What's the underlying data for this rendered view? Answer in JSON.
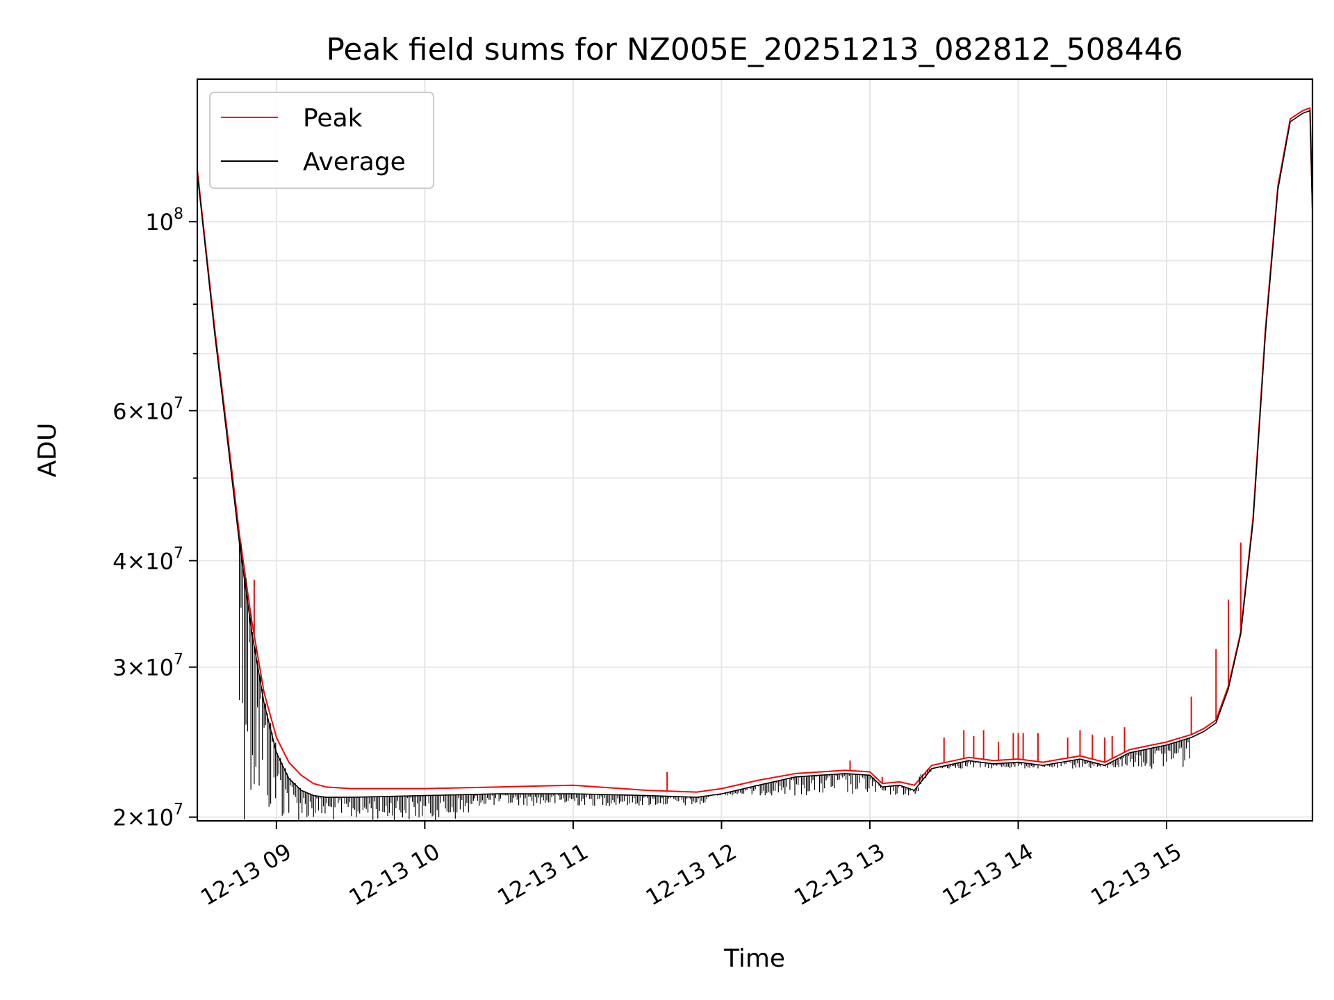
{
  "chart_data": {
    "type": "line",
    "title": "Peak field sums for NZ005E_20251213_082812_508446",
    "xlabel": "Time",
    "ylabel": "ADU",
    "yscale": "log",
    "xlim": [
      "2025-12-13 08:28",
      "2025-12-13 15:59"
    ],
    "ylim": [
      19800000,
      147000000
    ],
    "grid": true,
    "legend_position": "top-left",
    "x_ticks": [
      {
        "value": "2025-12-13 09:00",
        "label": "12-13 09"
      },
      {
        "value": "2025-12-13 10:00",
        "label": "12-13 10"
      },
      {
        "value": "2025-12-13 11:00",
        "label": "12-13 11"
      },
      {
        "value": "2025-12-13 12:00",
        "label": "12-13 12"
      },
      {
        "value": "2025-12-13 13:00",
        "label": "12-13 13"
      },
      {
        "value": "2025-12-13 14:00",
        "label": "12-13 14"
      },
      {
        "value": "2025-12-13 15:00",
        "label": "12-13 15"
      }
    ],
    "y_ticks": [
      {
        "value": 20000000,
        "mant": "2",
        "exp": "7"
      },
      {
        "value": 30000000,
        "mant": "3",
        "exp": "7"
      },
      {
        "value": 40000000,
        "mant": "4",
        "exp": "7"
      },
      {
        "value": 60000000,
        "mant": "6",
        "exp": "7"
      },
      {
        "value": 100000000,
        "mant": "",
        "exp": "8"
      }
    ],
    "y_minor_ticks": [
      50000000,
      70000000,
      80000000,
      90000000
    ],
    "series": [
      {
        "name": "Peak",
        "color": "#ff0000",
        "x": [
          "2025-12-13 08:28",
          "2025-12-13 08:35",
          "2025-12-13 08:40",
          "2025-12-13 08:45",
          "2025-12-13 08:50",
          "2025-12-13 08:55",
          "2025-12-13 09:00",
          "2025-12-13 09:05",
          "2025-12-13 09:10",
          "2025-12-13 09:15",
          "2025-12-13 09:20",
          "2025-12-13 09:30",
          "2025-12-13 10:00",
          "2025-12-13 10:30",
          "2025-12-13 11:00",
          "2025-12-13 11:30",
          "2025-12-13 11:50",
          "2025-12-13 12:00",
          "2025-12-13 12:15",
          "2025-12-13 12:30",
          "2025-12-13 12:50",
          "2025-12-13 13:00",
          "2025-12-13 13:05",
          "2025-12-13 13:12",
          "2025-12-13 13:18",
          "2025-12-13 13:25",
          "2025-12-13 13:40",
          "2025-12-13 13:50",
          "2025-12-13 14:00",
          "2025-12-13 14:10",
          "2025-12-13 14:25",
          "2025-12-13 14:35",
          "2025-12-13 14:45",
          "2025-12-13 15:00",
          "2025-12-13 15:10",
          "2025-12-13 15:15",
          "2025-12-13 15:20",
          "2025-12-13 15:25",
          "2025-12-13 15:30",
          "2025-12-13 15:35",
          "2025-12-13 15:40",
          "2025-12-13 15:45",
          "2025-12-13 15:50",
          "2025-12-13 15:55",
          "2025-12-13 15:58",
          "2025-12-13 15:59"
        ],
        "values": [
          115000000,
          75000000,
          57000000,
          43000000,
          34000000,
          28000000,
          24800000,
          23200000,
          22400000,
          21900000,
          21700000,
          21600000,
          21600000,
          21700000,
          21800000,
          21500000,
          21400000,
          21600000,
          22100000,
          22500000,
          22700000,
          22600000,
          21900000,
          22000000,
          21800000,
          23000000,
          23500000,
          23300000,
          23400000,
          23200000,
          23600000,
          23200000,
          24000000,
          24500000,
          25000000,
          25400000,
          26000000,
          28500000,
          33000000,
          45000000,
          75000000,
          110000000,
          132000000,
          135000000,
          136000000,
          103000000
        ],
        "spikes": [
          {
            "x": "2025-12-13 08:51",
            "value": 38000000
          },
          {
            "x": "2025-12-13 11:38",
            "value": 22600000
          },
          {
            "x": "2025-12-13 12:52",
            "value": 23300000
          },
          {
            "x": "2025-12-13 13:05",
            "value": 22300000
          },
          {
            "x": "2025-12-13 13:30",
            "value": 24800000
          },
          {
            "x": "2025-12-13 13:38",
            "value": 25300000
          },
          {
            "x": "2025-12-13 13:42",
            "value": 24900000
          },
          {
            "x": "2025-12-13 13:46",
            "value": 25300000
          },
          {
            "x": "2025-12-13 13:52",
            "value": 24500000
          },
          {
            "x": "2025-12-13 13:58",
            "value": 25100000
          },
          {
            "x": "2025-12-13 14:00",
            "value": 25100000
          },
          {
            "x": "2025-12-13 14:02",
            "value": 25100000
          },
          {
            "x": "2025-12-13 14:08",
            "value": 25100000
          },
          {
            "x": "2025-12-13 14:20",
            "value": 24800000
          },
          {
            "x": "2025-12-13 14:25",
            "value": 25300000
          },
          {
            "x": "2025-12-13 14:30",
            "value": 25000000
          },
          {
            "x": "2025-12-13 14:35",
            "value": 24800000
          },
          {
            "x": "2025-12-13 14:38",
            "value": 24900000
          },
          {
            "x": "2025-12-13 14:43",
            "value": 25500000
          },
          {
            "x": "2025-12-13 15:10",
            "value": 27700000
          },
          {
            "x": "2025-12-13 15:20",
            "value": 31500000
          },
          {
            "x": "2025-12-13 15:25",
            "value": 36000000
          },
          {
            "x": "2025-12-13 15:30",
            "value": 42000000
          }
        ]
      },
      {
        "name": "Average",
        "color": "#000000",
        "x": [
          "2025-12-13 08:28",
          "2025-12-13 08:35",
          "2025-12-13 08:40",
          "2025-12-13 08:45",
          "2025-12-13 08:50",
          "2025-12-13 08:55",
          "2025-12-13 09:00",
          "2025-12-13 09:05",
          "2025-12-13 09:10",
          "2025-12-13 09:15",
          "2025-12-13 09:20",
          "2025-12-13 09:30",
          "2025-12-13 10:00",
          "2025-12-13 10:30",
          "2025-12-13 11:00",
          "2025-12-13 11:30",
          "2025-12-13 11:50",
          "2025-12-13 12:00",
          "2025-12-13 12:15",
          "2025-12-13 12:30",
          "2025-12-13 12:50",
          "2025-12-13 13:00",
          "2025-12-13 13:05",
          "2025-12-13 13:12",
          "2025-12-13 13:18",
          "2025-12-13 13:25",
          "2025-12-13 13:40",
          "2025-12-13 13:50",
          "2025-12-13 14:00",
          "2025-12-13 14:10",
          "2025-12-13 14:25",
          "2025-12-13 14:35",
          "2025-12-13 14:45",
          "2025-12-13 15:00",
          "2025-12-13 15:10",
          "2025-12-13 15:15",
          "2025-12-13 15:20",
          "2025-12-13 15:25",
          "2025-12-13 15:30",
          "2025-12-13 15:35",
          "2025-12-13 15:40",
          "2025-12-13 15:45",
          "2025-12-13 15:50",
          "2025-12-13 15:55",
          "2025-12-13 15:58",
          "2025-12-13 15:59"
        ],
        "values": [
          114000000,
          74000000,
          56000000,
          42000000,
          33000000,
          27200000,
          23800000,
          22200000,
          21500000,
          21200000,
          21100000,
          21100000,
          21200000,
          21300000,
          21300000,
          21200000,
          21100000,
          21300000,
          21800000,
          22300000,
          22500000,
          22400000,
          21700000,
          21800000,
          21500000,
          22800000,
          23300000,
          23100000,
          23200000,
          23000000,
          23400000,
          23000000,
          23800000,
          24300000,
          24800000,
          25200000,
          25800000,
          28300000,
          32800000,
          44500000,
          74000000,
          109000000,
          131000000,
          134000000,
          135000000,
          102000000
        ],
        "noise": [
          {
            "from": "2025-12-13 08:45",
            "to": "2025-12-13 10:20",
            "min": 19800000
          },
          {
            "from": "2025-12-13 10:20",
            "to": "2025-12-13 11:55",
            "min": 20600000
          },
          {
            "from": "2025-12-13 11:55",
            "to": "2025-12-13 13:20",
            "min": 21200000
          },
          {
            "from": "2025-12-13 13:20",
            "to": "2025-12-13 15:10",
            "min": 22800000
          }
        ]
      }
    ]
  }
}
